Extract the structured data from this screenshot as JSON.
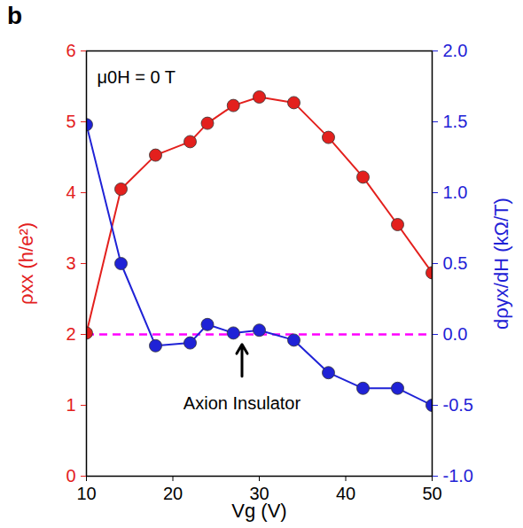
{
  "chart_data": {
    "type": "line",
    "panel": "b",
    "xlabel": "Vg (V)",
    "ylabel": "ρxx (h/e²)",
    "y2label": "dρyx/dH (kΩ/T)",
    "x": [
      10,
      14,
      18,
      22,
      24,
      27,
      30,
      34,
      38,
      42,
      46,
      50
    ],
    "series": [
      {
        "color": "#e3201d",
        "marker": "circle",
        "axis": "y",
        "values": [
          2.02,
          4.05,
          4.53,
          4.72,
          4.98,
          5.23,
          5.35,
          5.27,
          4.78,
          4.22,
          3.55,
          2.87
        ]
      },
      {
        "color": "#1f22d6",
        "marker": "circle",
        "axis": "y2",
        "values": [
          1.48,
          0.5,
          -0.08,
          -0.06,
          0.07,
          0.01,
          0.03,
          -0.04,
          -0.27,
          -0.38,
          -0.38,
          -0.5
        ]
      }
    ],
    "xlim": [
      10,
      50
    ],
    "xticks": [
      10,
      20,
      30,
      40,
      50
    ],
    "ylim": [
      0,
      6
    ],
    "yticks": [
      0,
      1,
      2,
      3,
      4,
      5,
      6
    ],
    "y2lim": [
      -1,
      2
    ],
    "y2ticks": [
      {
        "value": -1,
        "label": "-1.0"
      },
      {
        "value": -0.5,
        "label": "-0.5"
      },
      {
        "value": 0,
        "label": "0.0"
      },
      {
        "value": 0.5,
        "label": "0.5"
      },
      {
        "value": 1,
        "label": "1.0"
      },
      {
        "value": 1.5,
        "label": "1.5"
      },
      {
        "value": 2,
        "label": "2.0"
      }
    ],
    "reference_line": {
      "axis": "y2",
      "value": 0,
      "color": "#ff00ff",
      "line_style": "dashed"
    },
    "annotations": [
      {
        "text": "μ0H = 0 T"
      },
      {
        "text": "Axion Insulator",
        "x": 28
      }
    ]
  }
}
